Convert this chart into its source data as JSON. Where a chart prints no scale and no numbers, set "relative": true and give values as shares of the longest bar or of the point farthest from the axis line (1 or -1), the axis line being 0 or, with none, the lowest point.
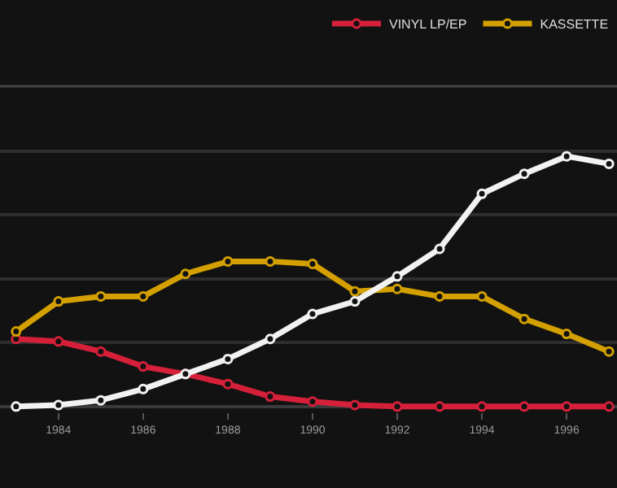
{
  "chart_data": {
    "type": "line",
    "relative": true,
    "x": [
      1983,
      1984,
      1985,
      1986,
      1987,
      1988,
      1989,
      1990,
      1991,
      1992,
      1993,
      1994,
      1995,
      1996,
      1997
    ],
    "xlim": [
      1982.62,
      1997.19
    ],
    "xticks": [
      1984,
      1986,
      1988,
      1990,
      1992,
      1994,
      1996
    ],
    "series": [
      {
        "name": "VINYL LP/EP",
        "color": "#d6203a",
        "values": [
          0.27,
          0.26,
          0.22,
          0.16,
          0.13,
          0.09,
          0.04,
          0.02,
          0.006,
          0,
          0,
          0,
          0,
          0,
          0
        ]
      },
      {
        "name": "KASSETTE",
        "color": "#d4a000",
        "values": [
          0.3,
          0.42,
          0.44,
          0.44,
          0.53,
          0.58,
          0.58,
          0.57,
          0.46,
          0.47,
          0.44,
          0.44,
          0.35,
          0.29,
          0.22
        ]
      },
      {
        "color": "#f2f2f2",
        "values": [
          0,
          0.006,
          0.025,
          0.07,
          0.13,
          0.19,
          0.27,
          0.37,
          0.42,
          0.52,
          0.63,
          0.85,
          0.93,
          1,
          0.97
        ]
      }
    ],
    "grid": "y",
    "legend": "top right",
    "marker": "circle",
    "line_style": "solid"
  }
}
